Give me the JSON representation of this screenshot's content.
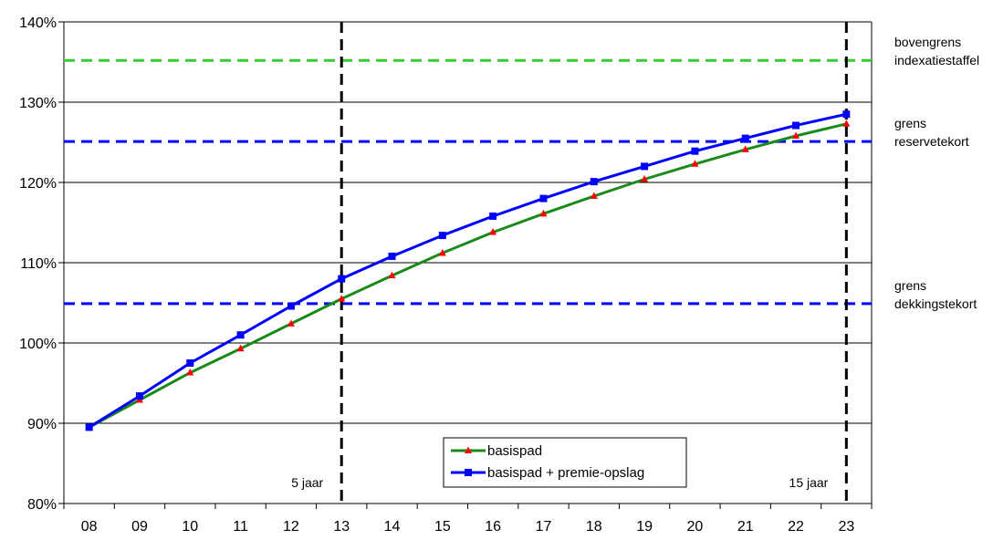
{
  "chart_data": {
    "type": "line",
    "x": [
      "08",
      "09",
      "10",
      "11",
      "12",
      "13",
      "14",
      "15",
      "16",
      "17",
      "18",
      "19",
      "20",
      "21",
      "22",
      "23"
    ],
    "ylim": [
      80,
      140
    ],
    "ytick_labels": [
      "80%",
      "90%",
      "100%",
      "110%",
      "120%",
      "130%",
      "140%"
    ],
    "ytick_values": [
      80,
      90,
      100,
      110,
      120,
      130,
      140
    ],
    "grid": "horizontal",
    "legend_position": "bottom-center",
    "series": [
      {
        "name": "basispad",
        "color": "#1a8a1a",
        "marker": "triangle",
        "marker_color": "#ff0000",
        "values": [
          89.5,
          92.9,
          96.3,
          99.3,
          102.4,
          105.5,
          108.4,
          111.2,
          113.8,
          116.1,
          118.3,
          120.4,
          122.3,
          124.1,
          125.8,
          127.3
        ]
      },
      {
        "name": "basispad + premie-opslag",
        "color": "#0000ff",
        "marker": "square",
        "marker_color": "#0000ff",
        "values": [
          89.5,
          93.4,
          97.5,
          101.0,
          104.6,
          108.0,
          110.8,
          113.4,
          115.8,
          118.0,
          120.1,
          122.0,
          123.9,
          125.5,
          127.1,
          128.5
        ]
      }
    ],
    "reference_lines": [
      {
        "value": 135.2,
        "color": "#33cc33",
        "label_lines": [
          "bovengrens",
          "indexatiestaffel"
        ]
      },
      {
        "value": 125.1,
        "color": "#0000ff",
        "label_lines": [
          "grens",
          "reservetekort"
        ]
      },
      {
        "value": 104.9,
        "color": "#0000ff",
        "label_lines": [
          "grens",
          "dekkingstekort"
        ]
      }
    ],
    "vertical_markers": [
      {
        "at": "13",
        "label": "5 jaar"
      },
      {
        "at": "23",
        "label": "15 jaar"
      }
    ]
  }
}
